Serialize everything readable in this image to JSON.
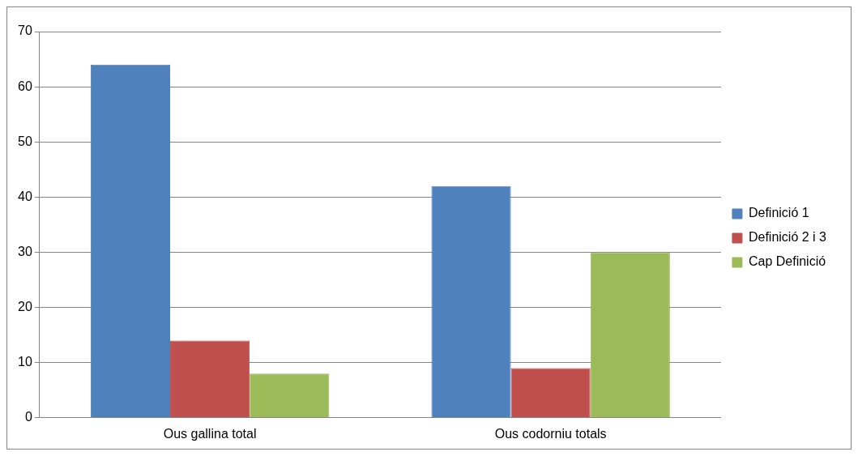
{
  "chart_data": {
    "type": "bar",
    "categories": [
      "Ous gallina total",
      "Ous codorniu totals"
    ],
    "series": [
      {
        "name": "Definició 1",
        "color": "#4f81bd",
        "values": [
          64,
          42
        ]
      },
      {
        "name": "Definició 2 i 3",
        "color": "#c0504d",
        "values": [
          14,
          9
        ]
      },
      {
        "name": "Cap Definició",
        "color": "#9bbb59",
        "values": [
          8,
          30
        ]
      }
    ],
    "ylim": [
      0,
      70
    ],
    "yticks": [
      0,
      10,
      20,
      30,
      40,
      50,
      60,
      70
    ],
    "grid": "y",
    "legend": "right"
  }
}
